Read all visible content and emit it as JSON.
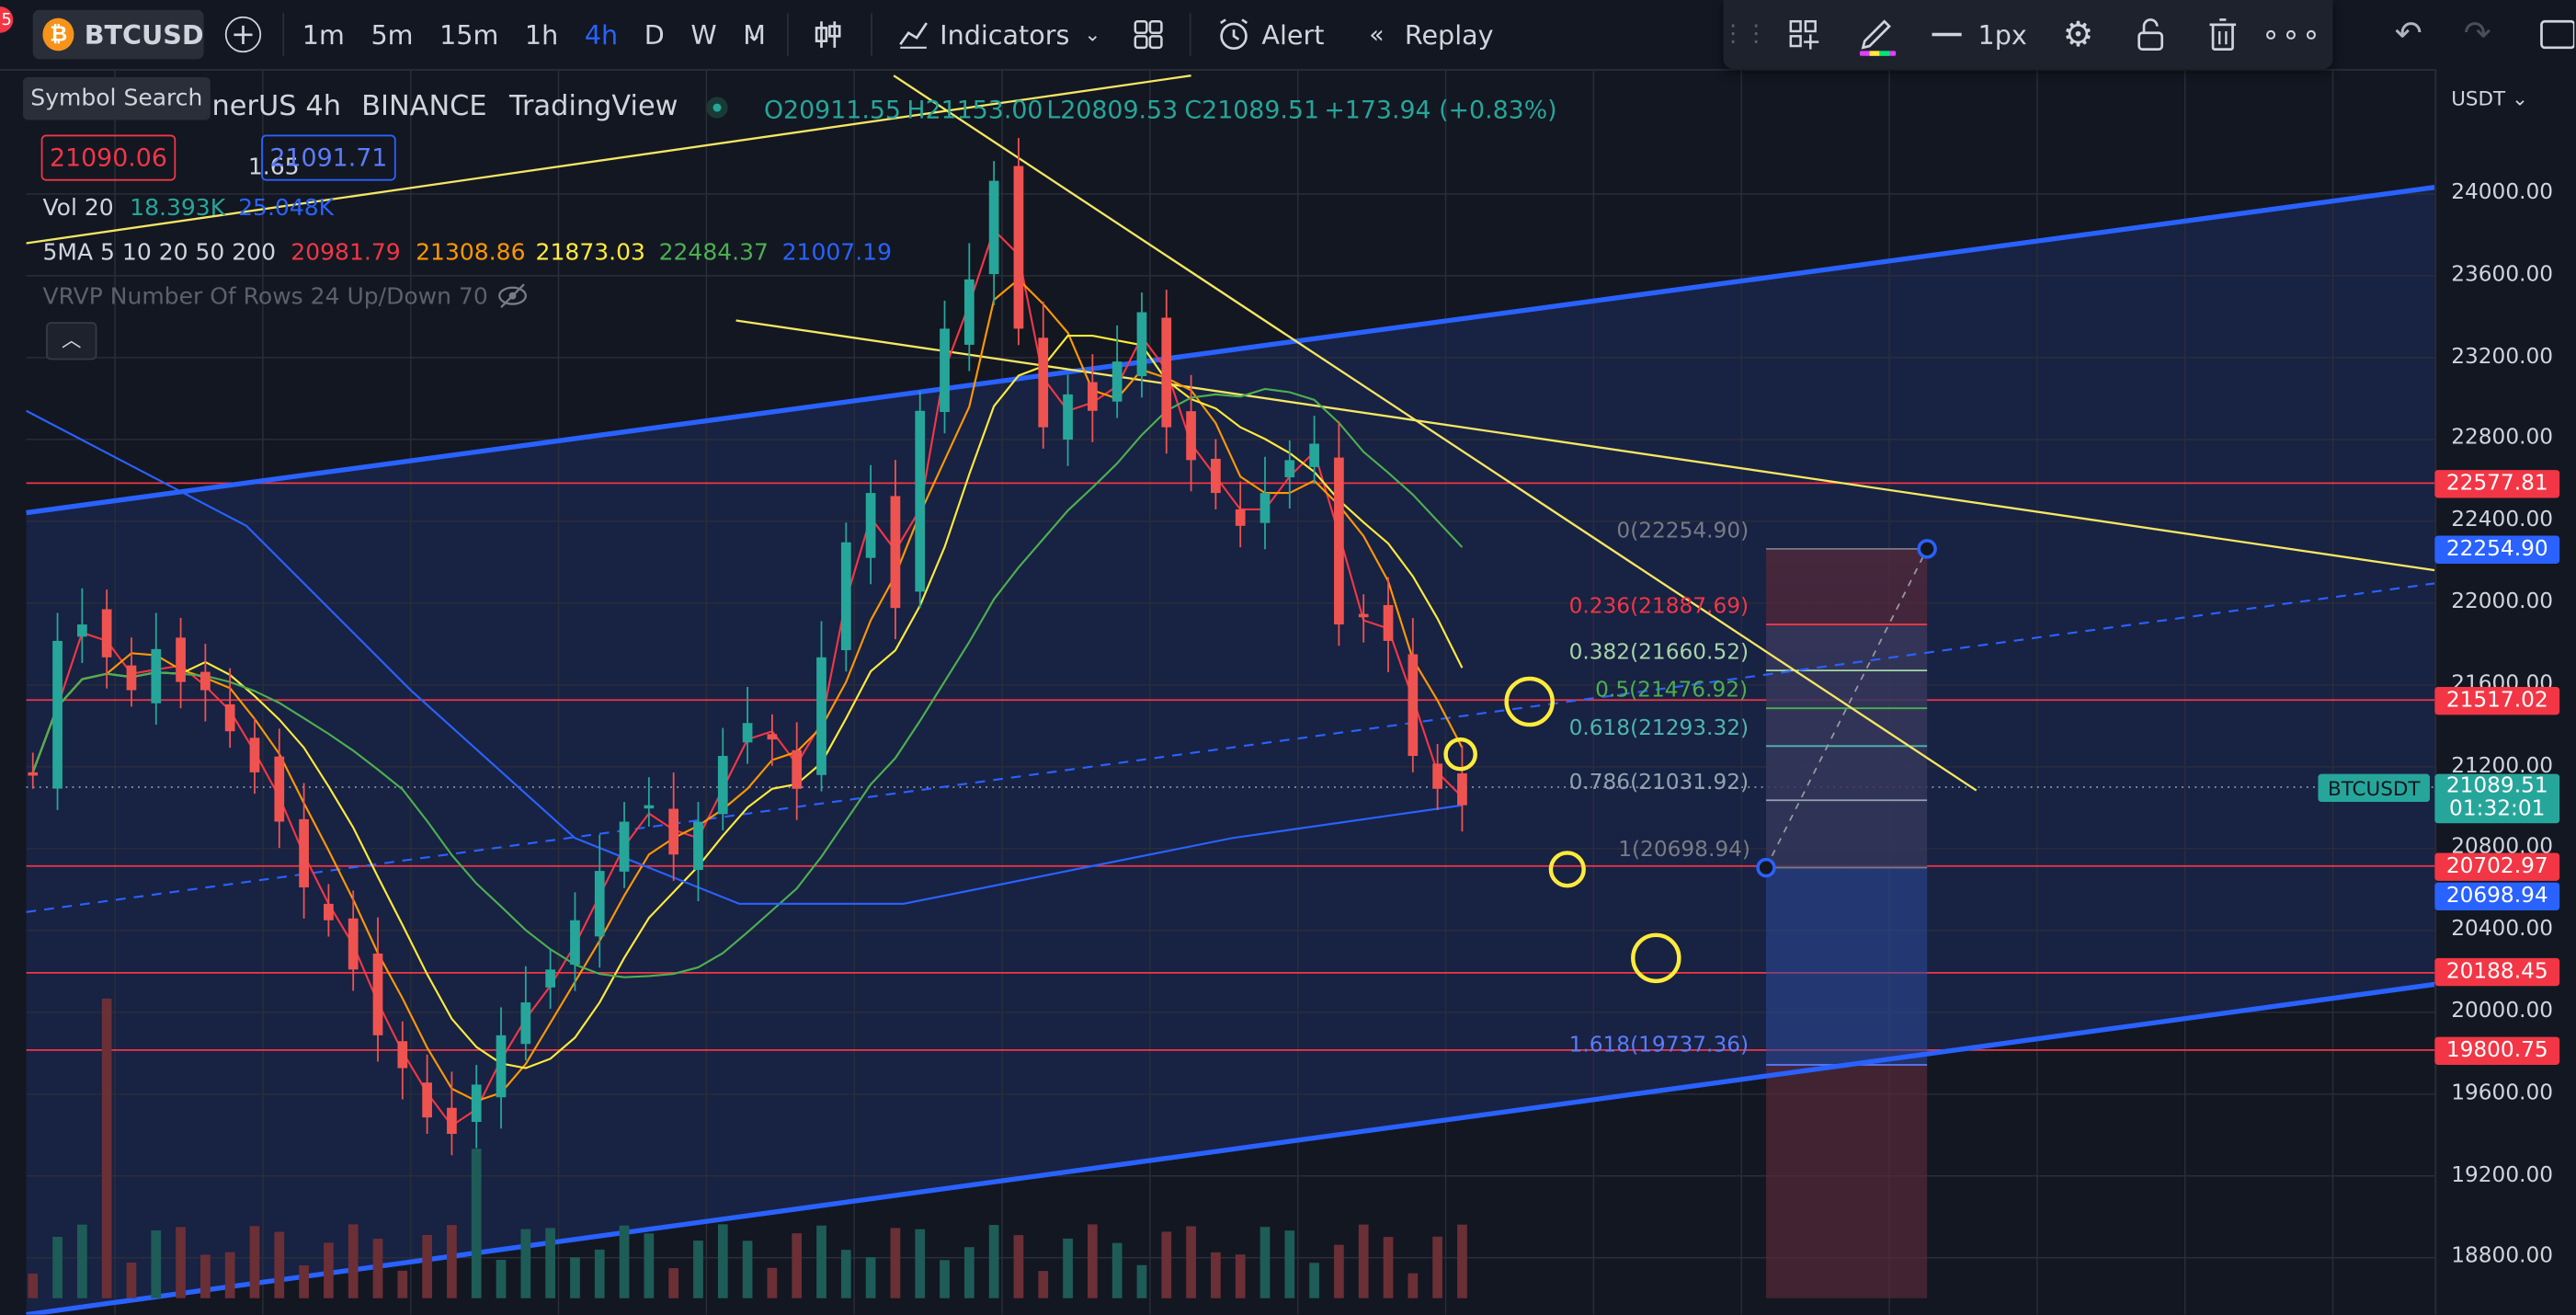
{
  "toolbar": {
    "symbol": "BTCUSD",
    "timeframes": [
      "1m",
      "5m",
      "15m",
      "1h",
      "4h",
      "D",
      "W",
      "M"
    ],
    "active_timeframe": "4h",
    "indicators_label": "Indicators",
    "alert_label": "Alert",
    "replay_label": "Replay",
    "line_width_label": "1px"
  },
  "tooltip": "Symbol Search",
  "legend": {
    "pair": "nerUS",
    "interval": "4h",
    "exchange": "BINANCE",
    "source": "TradingView",
    "open": "O20911.55",
    "high": "H21153.00",
    "low": "L20809.53",
    "close": "C21089.51",
    "change": "+173.94 (+0.83%)",
    "bid": "21090.06",
    "spread": "1.65",
    "ask": "21091.71",
    "vol_label": "Vol 20",
    "vol_1": "18.393K",
    "vol_2": "25.048K",
    "ma_label": "5MA 5 10 20 50 200",
    "ma_5": "20981.79",
    "ma_10": "21308.86",
    "ma_20": "21873.03",
    "ma_50": "22484.37",
    "ma_200": "21007.19",
    "vrvp": "VRVP Number Of Rows 24 Up/Down 70"
  },
  "axis": {
    "currency": "USDT",
    "ticks": [
      "24000.00",
      "23600.00",
      "23200.00",
      "22800.00",
      "22400.00",
      "22000.00",
      "21600.00",
      "21200.00",
      "20800.00",
      "20400.00",
      "20000.00",
      "19600.00",
      "19200.00",
      "18800.00"
    ]
  },
  "price_labels": {
    "l1": "22577.81",
    "l2": "22254.90",
    "l3": "21517.02",
    "l4": "21089.51",
    "l4_timer": "01:32:01",
    "l5": "20702.97",
    "l6": "20698.94",
    "l7": "20188.45",
    "l8": "19800.75",
    "symbol_tag": "BTCUSDT"
  },
  "fib": {
    "f0": "0(22254.90)",
    "f236": "0.236(21887.69)",
    "f382": "0.382(21660.52)",
    "f5": "0.5(21476.92)",
    "f618": "0.618(21293.32)",
    "f786": "0.786(21031.92)",
    "f1": "1(20698.94)",
    "f1618": "1.618(19737.36)"
  },
  "colors": {
    "bg": "#131722",
    "up": "#26a69a",
    "down": "#ef5350",
    "trend": "#2962ff",
    "yellow": "#f5e663",
    "redline": "#f23645"
  },
  "icons": [
    "bitcoin-icon",
    "plus-circle-icon",
    "chevron-down-icon",
    "candles-icon",
    "indicators-icon",
    "layouts-icon",
    "alert-icon",
    "replay-icon",
    "drag-handle-icon",
    "add-favorite-icon",
    "pencil-icon",
    "line-icon",
    "gear-icon",
    "lock-icon",
    "trash-icon",
    "more-icon",
    "undo-icon",
    "redo-icon",
    "eye-off-icon",
    "collapse-icon",
    "fullscreen-icon"
  ]
}
